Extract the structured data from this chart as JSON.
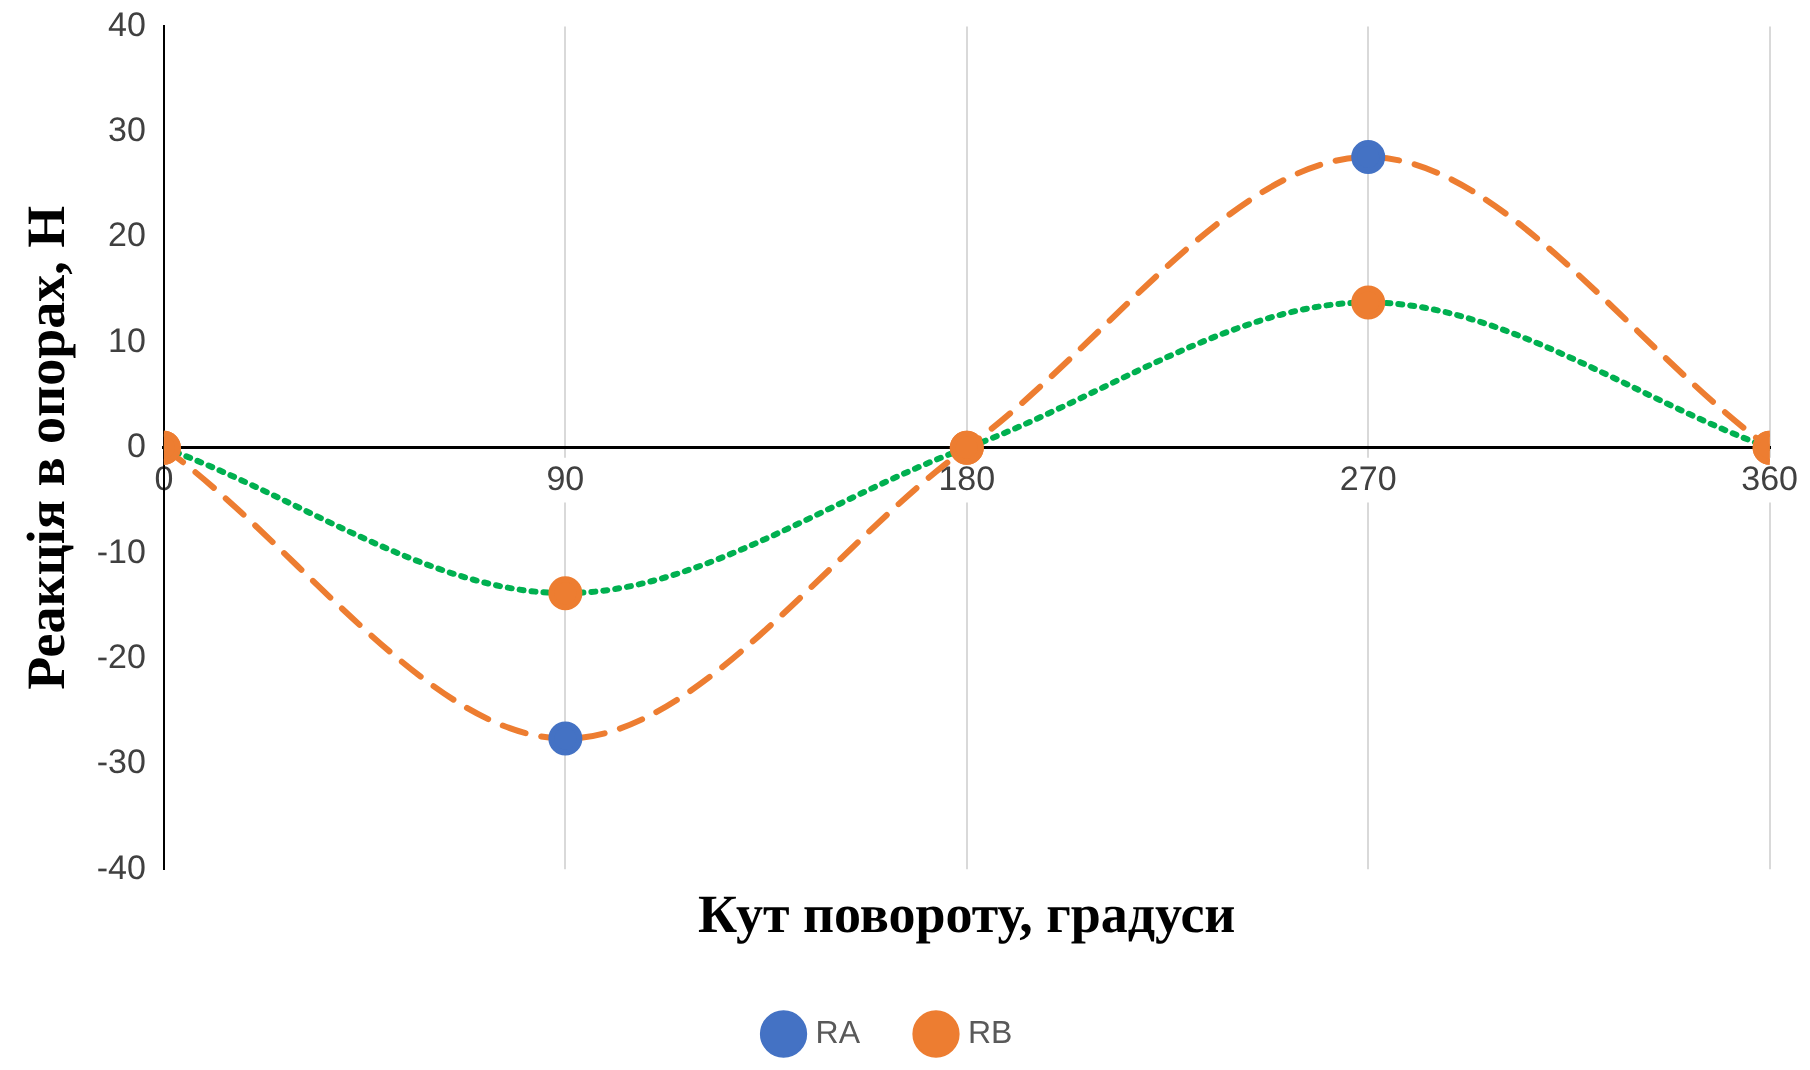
{
  "chart_data": {
    "type": "line",
    "xlabel": "Кут повороту, градуси",
    "ylabel": "Реакція в опорах, Н",
    "x": [
      0,
      90,
      180,
      270,
      360
    ],
    "series": [
      {
        "name": "RA",
        "color": "#ed7d31",
        "colors": [
          "#ed7d31",
          "#4472c4",
          "#ed7d31",
          "#4472c4",
          "#ed7d31"
        ],
        "line_style": "dashed",
        "values": [
          0,
          -27.6,
          0,
          27.6,
          0
        ]
      },
      {
        "name": "RB",
        "color": "#00b050",
        "colors": [
          "#ed7d31",
          "#ed7d31",
          "#ed7d31",
          "#ed7d31",
          "#ed7d31"
        ],
        "line_style": "dotted",
        "values": [
          0,
          -13.8,
          0,
          13.8,
          0
        ]
      }
    ],
    "xlim": [
      0,
      360
    ],
    "xticks": [
      0,
      90,
      180,
      270,
      360
    ],
    "ylim": [
      -40,
      40
    ],
    "yticks": [
      -40,
      -30,
      -20,
      -10,
      0,
      10,
      20,
      30,
      40
    ],
    "grid": "x",
    "legend": "bottom",
    "marker": "circle"
  }
}
